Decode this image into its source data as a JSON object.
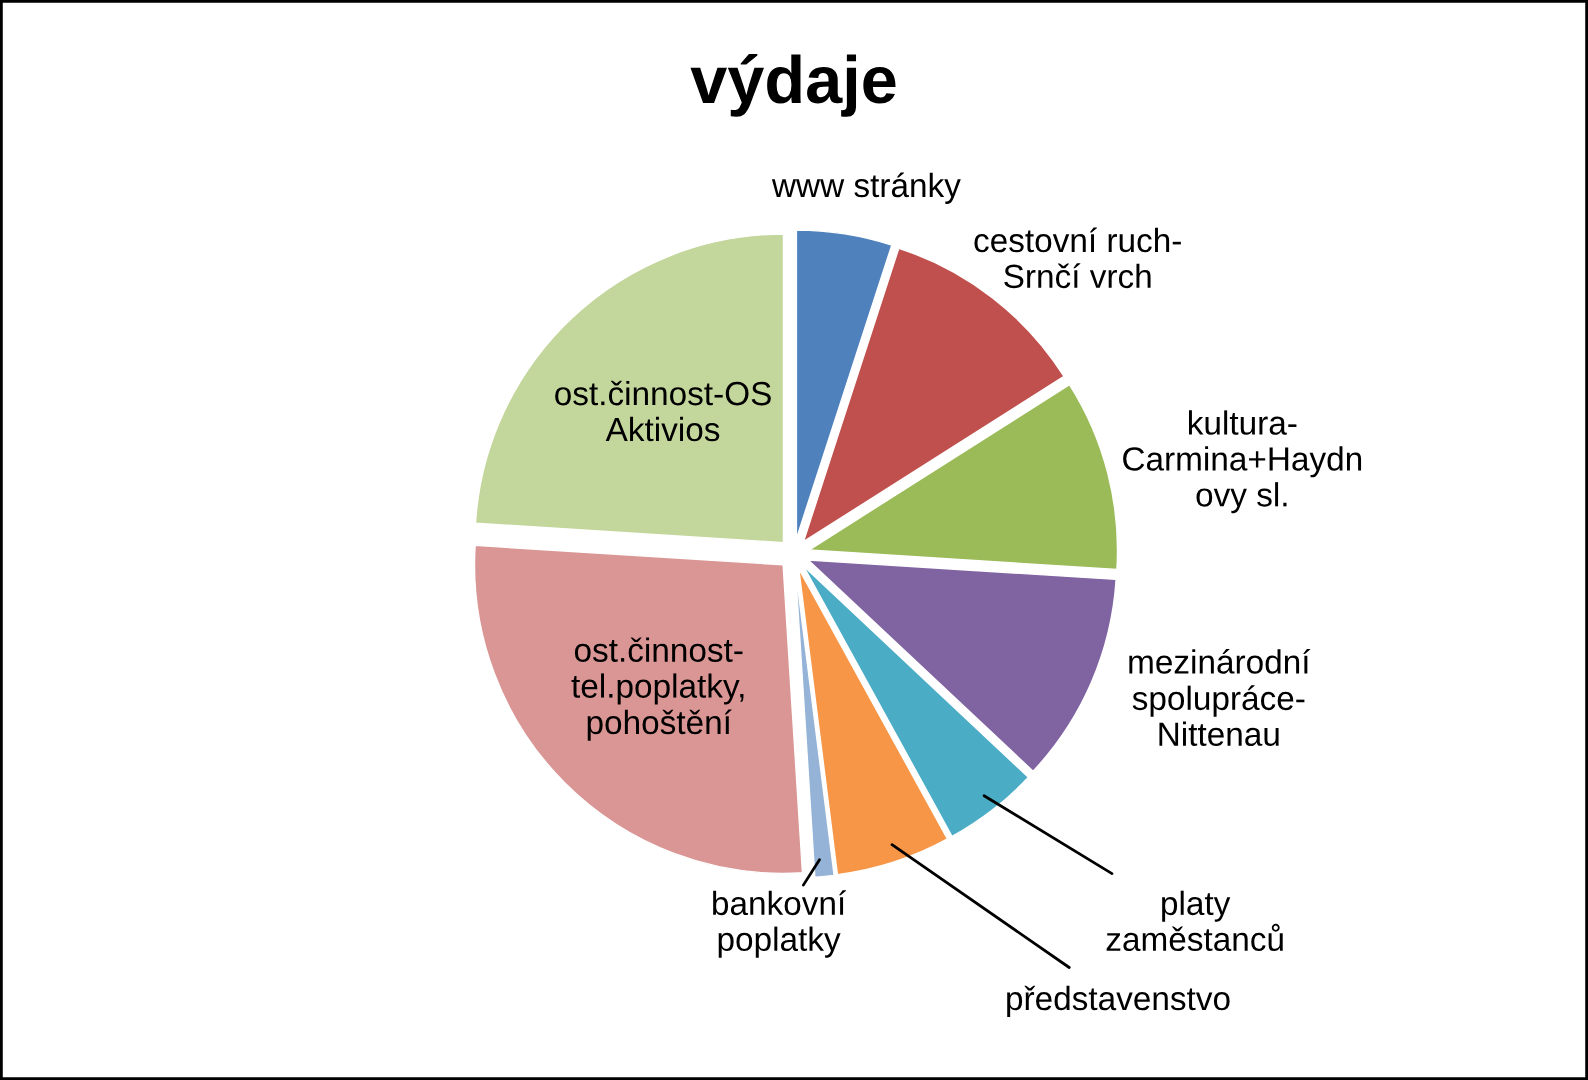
{
  "chart_data": {
    "type": "pie",
    "title": "výdaje",
    "categories": [
      "www stránky",
      "cestovní ruch-\nSrnčí vrch",
      "kultura-\nCarmina+Haydn\novy sl.",
      "mezinárodní\nspolupráce-\nNittenau",
      "platy\nzaměstanců",
      "představenstvo",
      "bankovní\npoplatky",
      "ost.činnost-\ntel.poplatky,\npohoštění",
      "ost.činnost-OS\nAktivios"
    ],
    "values": [
      5,
      11,
      10,
      11,
      5,
      6,
      1,
      27,
      24
    ],
    "colors": [
      "#4f81bd",
      "#c0504d",
      "#9bbb59",
      "#8064a2",
      "#4bacc6",
      "#f79646",
      "#95b3d7",
      "#d99694",
      "#c3d69b"
    ],
    "legend": false
  }
}
